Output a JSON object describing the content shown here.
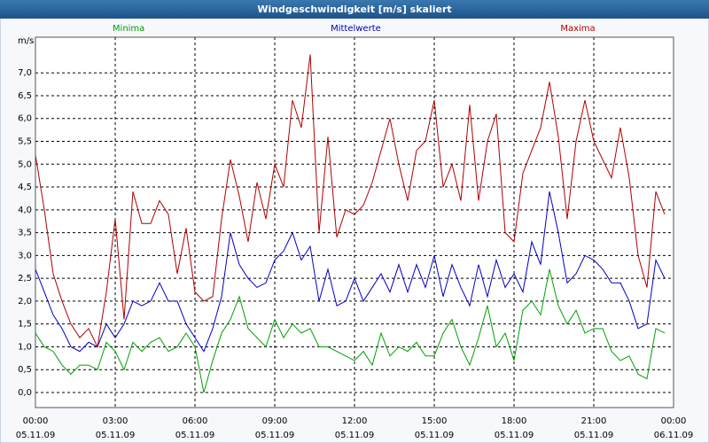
{
  "chart_data": {
    "type": "line",
    "title": "Windgeschwindigkeit [m/s] skaliert",
    "y_label": "m/s",
    "x": [
      0,
      20,
      40,
      60,
      80,
      100,
      120,
      140,
      160,
      180,
      200,
      220,
      240,
      260,
      280,
      300,
      320,
      340,
      360,
      380,
      400,
      420,
      440,
      460,
      480,
      500,
      520,
      540,
      560,
      580,
      600,
      620,
      640,
      660,
      680,
      700,
      720,
      740,
      760,
      780,
      800,
      820,
      840,
      860,
      880,
      900,
      920,
      940,
      960,
      980,
      1000,
      1020,
      1040,
      1060,
      1080,
      1100,
      1120,
      1140,
      1160,
      1180,
      1200,
      1220,
      1240,
      1260,
      1280,
      1300,
      1320,
      1340,
      1360,
      1380,
      1400,
      1420
    ],
    "series": [
      {
        "name": "Minima",
        "color": "#00a000",
        "values": [
          1.3,
          1.0,
          0.9,
          0.6,
          0.4,
          0.6,
          0.6,
          0.5,
          1.1,
          0.9,
          0.5,
          1.1,
          0.9,
          1.1,
          1.2,
          0.9,
          1.0,
          1.3,
          1.0,
          0.0,
          0.7,
          1.3,
          1.6,
          2.1,
          1.4,
          1.2,
          1.0,
          1.6,
          1.2,
          1.5,
          1.3,
          1.4,
          1.0,
          1.0,
          0.9,
          0.8,
          0.7,
          0.9,
          0.6,
          1.3,
          0.8,
          1.0,
          0.9,
          1.1,
          0.8,
          0.8,
          1.3,
          1.6,
          1.0,
          0.6,
          1.2,
          1.9,
          1.0,
          1.3,
          0.7,
          1.8,
          2.0,
          1.7,
          2.7,
          1.9,
          1.5,
          1.8,
          1.3,
          1.4,
          1.4,
          0.9,
          0.7,
          0.8,
          0.4,
          0.3,
          1.4,
          1.3
        ]
      },
      {
        "name": "Mittelwerte",
        "color": "#0000c0",
        "values": [
          2.7,
          2.2,
          1.7,
          1.4,
          1.0,
          0.9,
          1.1,
          1.0,
          1.5,
          1.2,
          1.5,
          2.0,
          1.9,
          2.0,
          2.4,
          2.0,
          2.0,
          1.5,
          1.2,
          0.9,
          1.4,
          2.1,
          3.5,
          2.8,
          2.5,
          2.3,
          2.4,
          2.9,
          3.1,
          3.5,
          2.9,
          3.2,
          2.0,
          2.7,
          1.9,
          2.0,
          2.5,
          2.0,
          2.3,
          2.6,
          2.2,
          2.8,
          2.2,
          2.8,
          2.3,
          3.0,
          2.1,
          2.8,
          2.3,
          1.9,
          2.8,
          2.1,
          2.9,
          2.3,
          2.6,
          2.2,
          3.3,
          2.8,
          4.4,
          3.5,
          2.4,
          2.6,
          3.0,
          2.9,
          2.7,
          2.4,
          2.4,
          2.0,
          1.4,
          1.5,
          2.9,
          2.5
        ]
      },
      {
        "name": "Maxima",
        "color": "#b00000",
        "values": [
          5.2,
          4.0,
          2.6,
          2.0,
          1.5,
          1.2,
          1.4,
          1.0,
          2.2,
          3.8,
          1.6,
          4.4,
          3.7,
          3.7,
          4.2,
          3.9,
          2.6,
          3.6,
          2.2,
          2.0,
          2.1,
          3.8,
          5.1,
          4.3,
          3.3,
          4.6,
          3.8,
          5.0,
          4.5,
          6.4,
          5.8,
          7.4,
          3.5,
          5.6,
          3.4,
          4.0,
          3.9,
          4.1,
          4.6,
          5.3,
          6.0,
          5.0,
          4.2,
          5.3,
          5.5,
          6.4,
          4.5,
          5.0,
          4.2,
          6.3,
          4.2,
          5.5,
          6.1,
          3.5,
          3.3,
          4.8,
          5.3,
          5.8,
          6.8,
          5.6,
          3.8,
          5.5,
          6.4,
          5.5,
          5.1,
          4.7,
          5.8,
          4.7,
          3.0,
          2.3,
          4.4,
          3.9
        ]
      }
    ],
    "xlim": [
      0,
      1440
    ],
    "xticks": [
      {
        "value": 0,
        "label": "00:00",
        "date": "05.11.09"
      },
      {
        "value": 180,
        "label": "03:00",
        "date": "05.11.09"
      },
      {
        "value": 360,
        "label": "06:00",
        "date": "05.11.09"
      },
      {
        "value": 540,
        "label": "09:00",
        "date": "05.11.09"
      },
      {
        "value": 720,
        "label": "12:00",
        "date": "05.11.09"
      },
      {
        "value": 900,
        "label": "15:00",
        "date": "05.11.09"
      },
      {
        "value": 1080,
        "label": "18:00",
        "date": "05.11.09"
      },
      {
        "value": 1260,
        "label": "21:00",
        "date": "05.11.09"
      },
      {
        "value": 1440,
        "label": "00:00",
        "date": "06.11.09"
      }
    ],
    "ylim": [
      -0.33,
      7.78
    ],
    "yticks": [
      {
        "value": 0,
        "label": "0,0"
      },
      {
        "value": 0.5,
        "label": "0,5"
      },
      {
        "value": 1,
        "label": "1,0"
      },
      {
        "value": 1.5,
        "label": "1,5"
      },
      {
        "value": 2,
        "label": "2,0"
      },
      {
        "value": 2.5,
        "label": "2,5"
      },
      {
        "value": 3,
        "label": "3,0"
      },
      {
        "value": 3.5,
        "label": "3,5"
      },
      {
        "value": 4,
        "label": "4,0"
      },
      {
        "value": 4.5,
        "label": "4,5"
      },
      {
        "value": 5,
        "label": "5,0"
      },
      {
        "value": 5.5,
        "label": "5,5"
      },
      {
        "value": 6,
        "label": "6,0"
      },
      {
        "value": 6.5,
        "label": "6,5"
      },
      {
        "value": 7,
        "label": "7,0"
      }
    ],
    "grid": true,
    "legend": "top"
  }
}
